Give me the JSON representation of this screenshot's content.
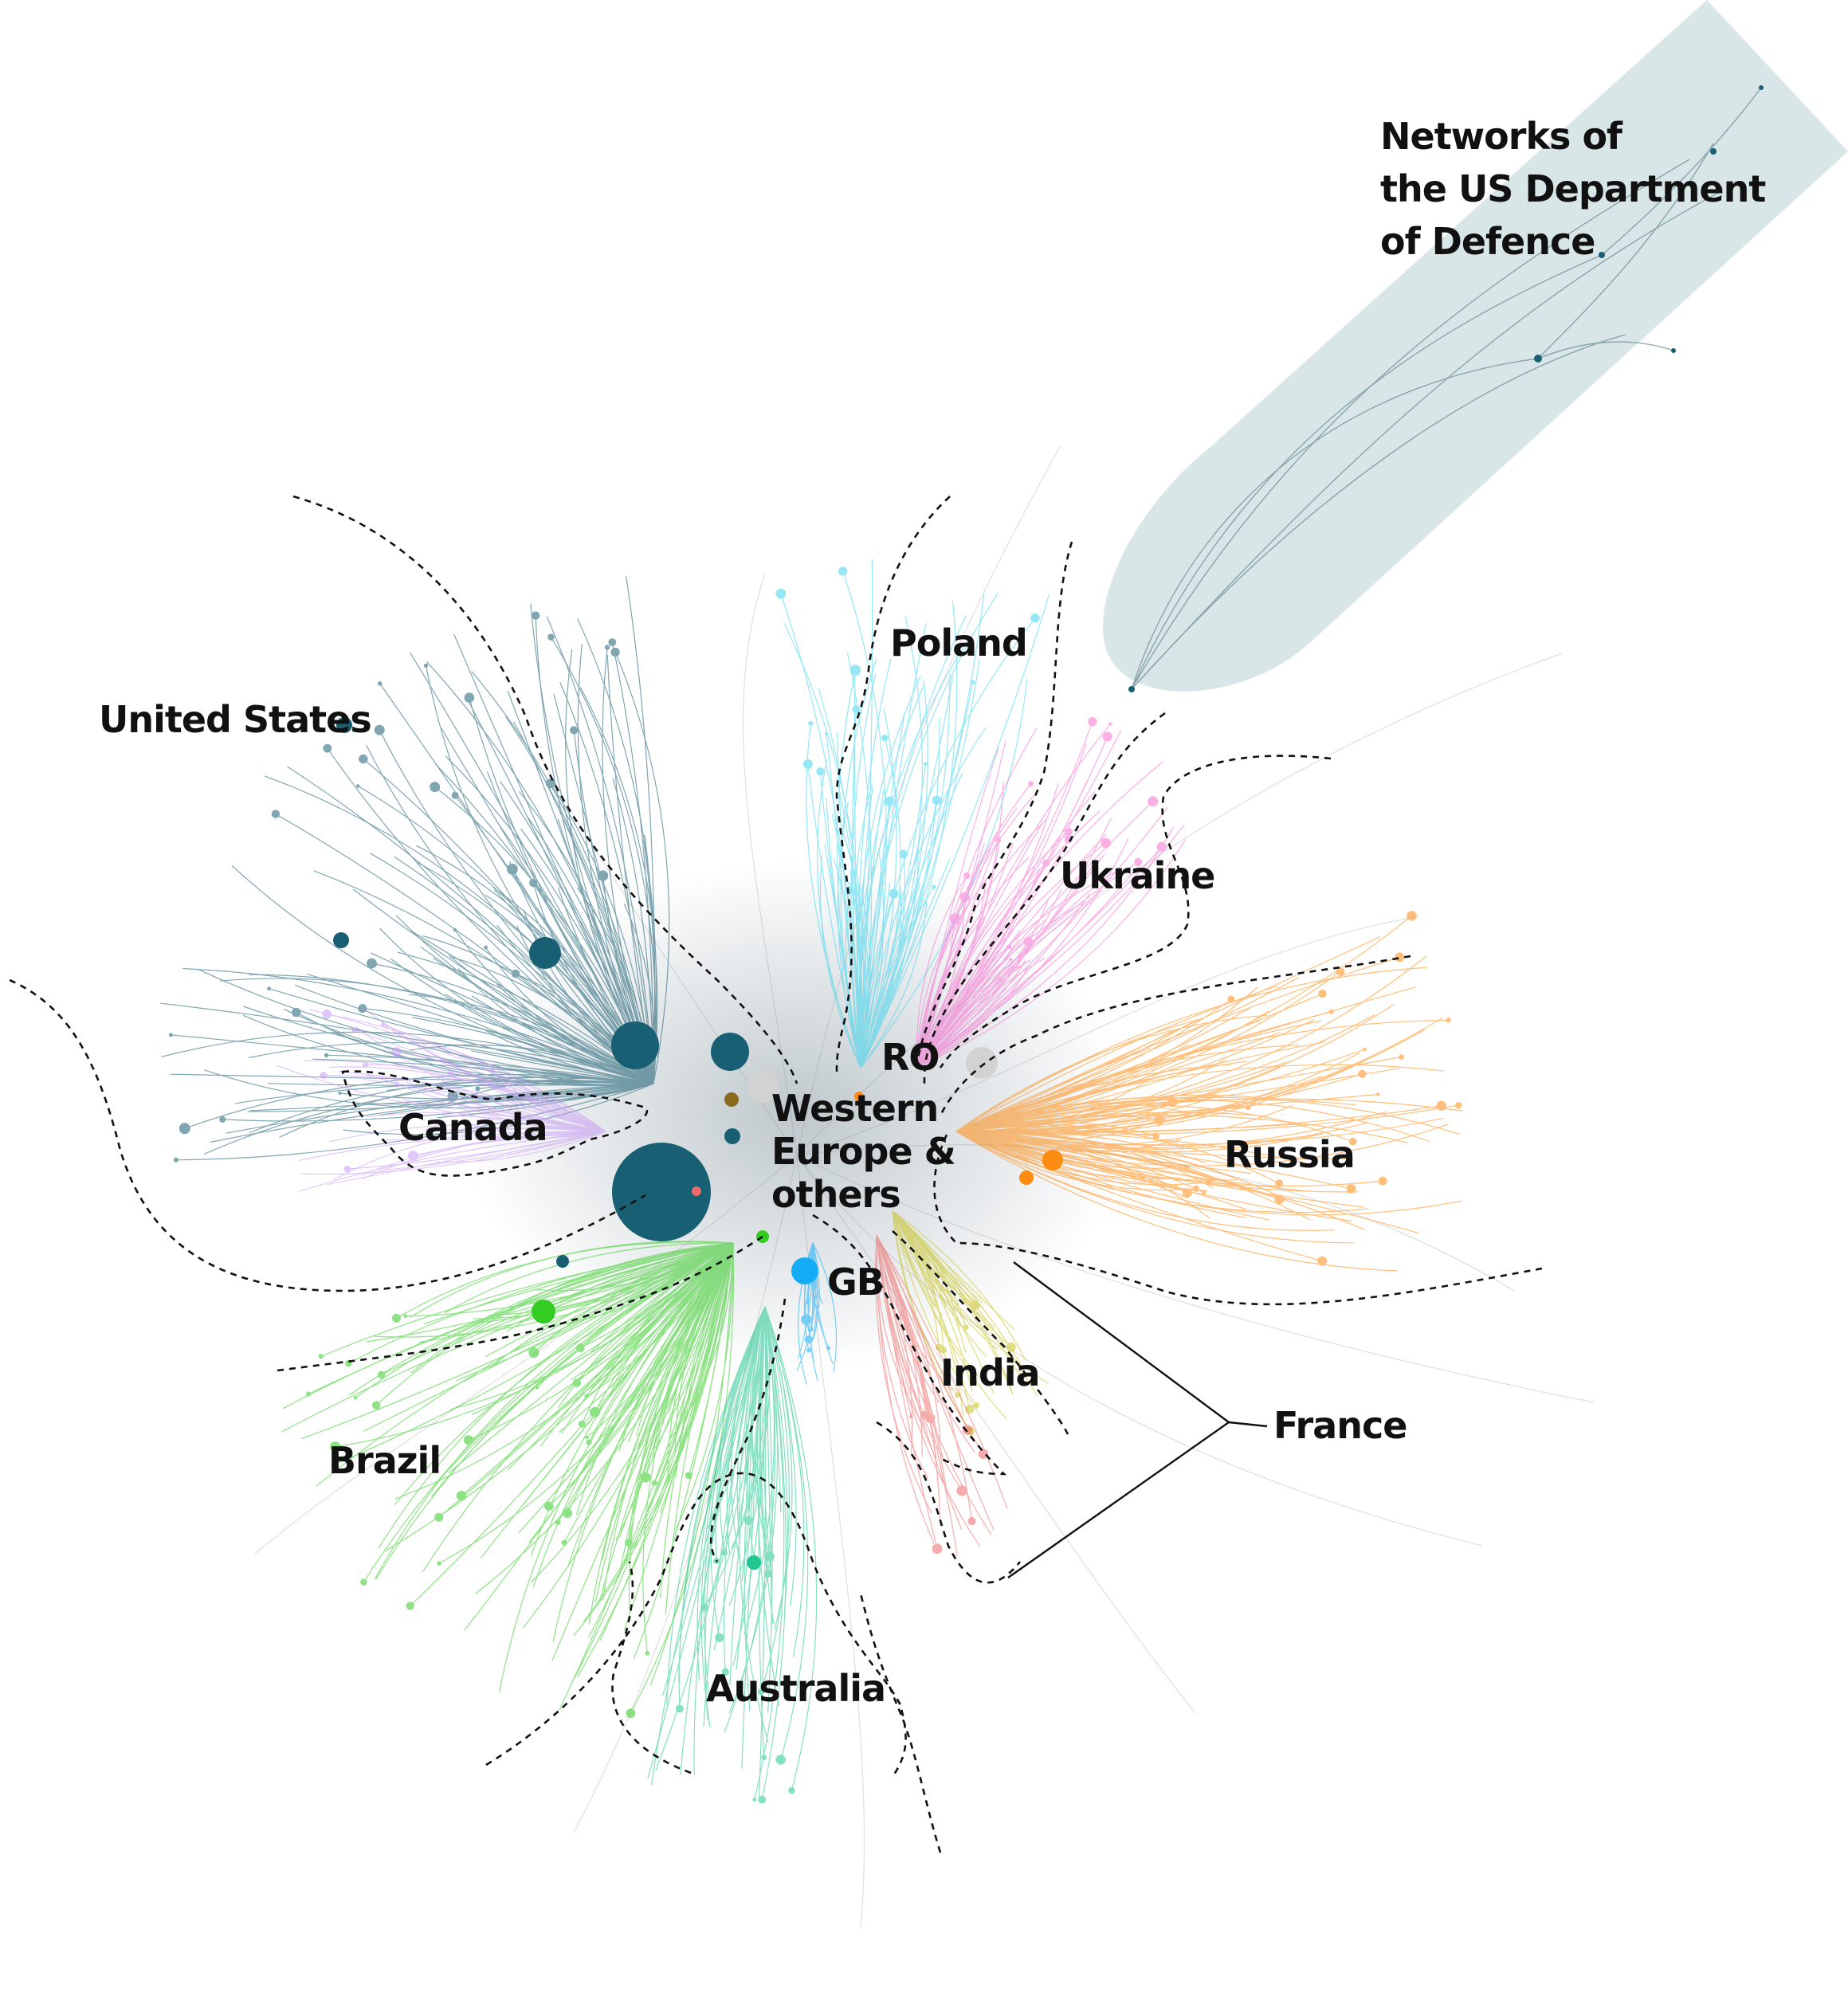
{
  "dod_region": {
    "lines": [
      "Networks of",
      "the US Department",
      "of Defence"
    ],
    "fill": "#d8e6e7"
  },
  "regions": [
    {
      "id": "united-states",
      "label": "United States",
      "color": "#195f73"
    },
    {
      "id": "canada",
      "label": "Canada",
      "color": "#c79af5"
    },
    {
      "id": "poland",
      "label": "Poland",
      "color": "#3fd5ee"
    },
    {
      "id": "ukraine",
      "label": "Ukraine",
      "color": "#f76fd1"
    },
    {
      "id": "ro",
      "label": "RO",
      "color": "#cccccc"
    },
    {
      "id": "russia",
      "label": "Russia",
      "color": "#ff8c12"
    },
    {
      "id": "gb",
      "label": "GB",
      "color": "#14adf5"
    },
    {
      "id": "india",
      "label": "India",
      "color": "#c8c21a"
    },
    {
      "id": "france",
      "label": "France",
      "color": "#ef6a6a"
    },
    {
      "id": "brazil",
      "label": "Brazil",
      "color": "#33cc22"
    },
    {
      "id": "australia",
      "label": "Australia",
      "color": "#22c590"
    }
  ],
  "western_europe": {
    "lines": [
      "Western",
      "Europe &",
      "others"
    ]
  },
  "colors": {
    "edge_grey": "#bdbdbd",
    "boundary": "#111111"
  }
}
